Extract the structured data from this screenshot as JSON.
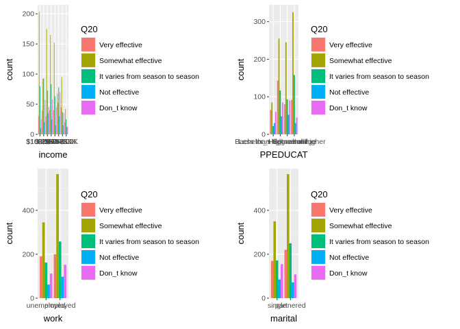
{
  "legend": {
    "title": "Q20",
    "levels": [
      "Very effective",
      "Somewhat effective",
      "It varies from season to season",
      "Not effective",
      "Don_t know"
    ],
    "colors": [
      "#F8766D",
      "#A3A500",
      "#00BF7D",
      "#00B0F6",
      "#E76BF3"
    ]
  },
  "chart_data": [
    {
      "type": "bar",
      "xlabel": "income",
      "ylabel": "count",
      "ylim": [
        0,
        215
      ],
      "yticks": [
        0,
        50,
        100,
        150,
        200
      ],
      "categories": [
        "$10-25K",
        "$100-150K",
        "$150K+",
        "$25-35K",
        "$35-50K",
        "$50-75K",
        "$75-100K",
        "<$10K"
      ],
      "series": [
        {
          "name": "Very effective",
          "values": [
            30,
            40,
            30,
            40,
            40,
            68,
            45,
            20
          ]
        },
        {
          "name": "Somewhat effective",
          "values": [
            203,
            92,
            175,
            165,
            152,
            52,
            95,
            42
          ]
        },
        {
          "name": "It varies from season to season",
          "values": [
            80,
            93,
            73,
            83,
            63,
            78,
            37,
            25
          ]
        },
        {
          "name": "Not effective",
          "values": [
            10,
            20,
            35,
            25,
            15,
            30,
            15,
            12
          ]
        },
        {
          "name": "Don_t know",
          "values": [
            25,
            57,
            45,
            58,
            45,
            70,
            35,
            13
          ]
        }
      ]
    },
    {
      "type": "bar",
      "xlabel": "PPEDUCAT",
      "ylabel": "count",
      "ylim": [
        0,
        345
      ],
      "yticks": [
        0,
        100,
        200,
        300
      ],
      "categories": [
        "Less than high school",
        "Bachelor_s degree or higher",
        "High school",
        "Some college"
      ],
      "series": [
        {
          "name": "Very effective",
          "values": [
            65,
            143,
            80,
            92
          ]
        },
        {
          "name": "Somewhat effective",
          "values": [
            85,
            255,
            245,
            325
          ]
        },
        {
          "name": "It varies from season to season",
          "values": [
            22,
            117,
            93,
            158
          ]
        },
        {
          "name": "Not effective",
          "values": [
            30,
            48,
            52,
            30
          ]
        },
        {
          "name": "Don_t know",
          "values": [
            60,
            85,
            90,
            45
          ]
        }
      ]
    },
    {
      "type": "bar",
      "xlabel": "work",
      "ylabel": "count",
      "ylim": [
        0,
        590
      ],
      "yticks": [
        0,
        200,
        400
      ],
      "categories": [
        "unemployed",
        "employed"
      ],
      "series": [
        {
          "name": "Very effective",
          "values": [
            190,
            200
          ]
        },
        {
          "name": "Somewhat effective",
          "values": [
            345,
            565
          ]
        },
        {
          "name": "It varies from season to season",
          "values": [
            162,
            258
          ]
        },
        {
          "name": "Not effective",
          "values": [
            62,
            98
          ]
        },
        {
          "name": "Don_t know",
          "values": [
            112,
            152
          ]
        }
      ]
    },
    {
      "type": "bar",
      "xlabel": "marital",
      "ylabel": "count",
      "ylim": [
        0,
        590
      ],
      "yticks": [
        0,
        200,
        400
      ],
      "categories": [
        "single",
        "partnered"
      ],
      "series": [
        {
          "name": "Very effective",
          "values": [
            170,
            220
          ]
        },
        {
          "name": "Somewhat effective",
          "values": [
            350,
            565
          ]
        },
        {
          "name": "It varies from season to season",
          "values": [
            172,
            250
          ]
        },
        {
          "name": "Not effective",
          "values": [
            85,
            72
          ]
        },
        {
          "name": "Don_t know",
          "values": [
            155,
            108
          ]
        }
      ]
    }
  ]
}
